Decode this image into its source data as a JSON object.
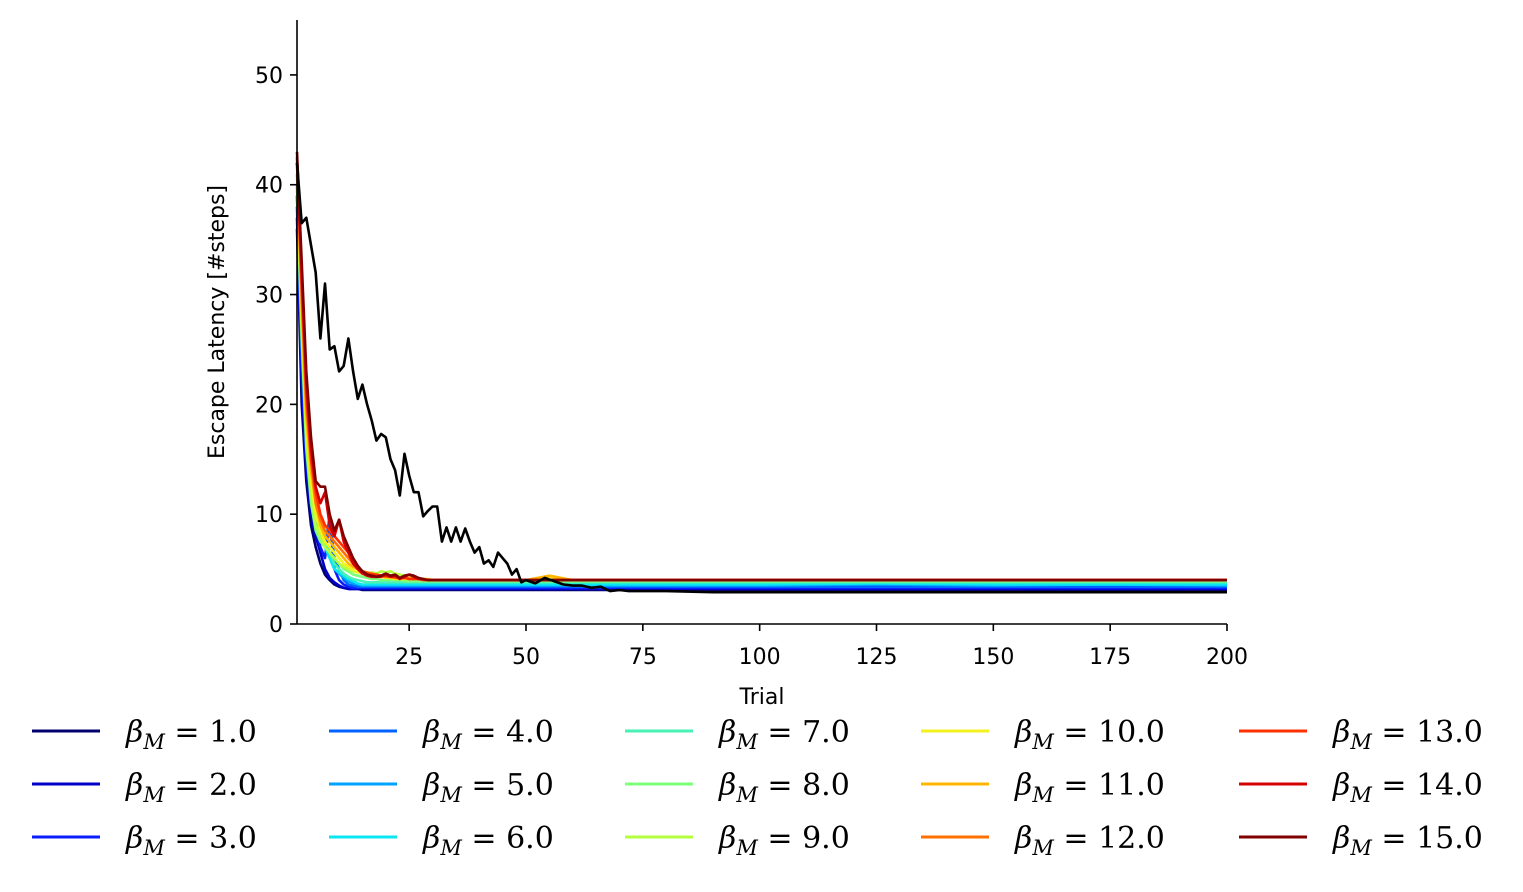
{
  "chart_data": {
    "type": "line",
    "xlabel": "Trial",
    "ylabel": "Escape Latency [#steps]",
    "xlim": [
      1,
      200
    ],
    "ylim": [
      0,
      55
    ],
    "xticks": [
      25,
      50,
      75,
      100,
      125,
      150,
      175,
      200
    ],
    "yticks": [
      0,
      10,
      20,
      30,
      40,
      50
    ],
    "grid": false,
    "legend_position": "bottom",
    "legend_columns": 5,
    "legend_symbol": "β",
    "legend_subscript": "M",
    "legend_operator": " = ",
    "x": [
      1,
      2,
      3,
      4,
      5,
      6,
      7,
      8,
      9,
      10,
      11,
      12,
      13,
      14,
      15,
      16,
      17,
      18,
      19,
      20,
      21,
      22,
      23,
      24,
      25,
      26,
      27,
      28,
      29,
      30,
      35,
      40,
      45,
      50,
      55,
      60,
      65,
      70,
      75,
      80,
      90,
      100,
      125,
      150,
      175,
      200
    ],
    "series": [
      {
        "name": "1.0",
        "color": "#00006e",
        "values": [
          36,
          20,
          13,
          9,
          7,
          5.5,
          4.5,
          4,
          3.6,
          3.4,
          3.3,
          3.2,
          3.2,
          3.2,
          3.1,
          3.1,
          3.1,
          3.1,
          3.1,
          3.1,
          3.1,
          3.1,
          3.1,
          3.1,
          3.1,
          3.1,
          3.1,
          3.1,
          3.1,
          3.1,
          3.1,
          3.1,
          3.1,
          3.1,
          3.1,
          3.1,
          3.1,
          3.1,
          3.1,
          3.1,
          3.1,
          3.1,
          3.1,
          3.1,
          3.1,
          3.1
        ]
      },
      {
        "name": "2.0",
        "color": "#0000c8",
        "values": [
          37,
          22,
          14,
          10,
          8,
          6.5,
          5,
          4.2,
          3.8,
          3.5,
          3.3,
          3.2,
          3.2,
          3.2,
          3.2,
          3.2,
          3.2,
          3.2,
          3.2,
          3.2,
          3.2,
          3.2,
          3.2,
          3.2,
          3.2,
          3.2,
          3.2,
          3.2,
          3.2,
          3.2,
          3.2,
          3.2,
          3.2,
          3.2,
          3.2,
          3.2,
          3.2,
          3.2,
          3.2,
          3.2,
          3.2,
          3.2,
          3.2,
          3.2,
          3.2,
          3.2
        ]
      },
      {
        "name": "3.0",
        "color": "#0a1eff",
        "values": [
          38,
          23,
          15,
          11,
          9,
          7,
          6,
          9.5,
          5,
          4,
          3.6,
          3.4,
          3.3,
          3.3,
          3.3,
          3.3,
          3.3,
          3.3,
          3.3,
          3.3,
          3.3,
          3.3,
          3.3,
          3.3,
          3.3,
          3.3,
          3.3,
          3.3,
          3.3,
          3.3,
          3.3,
          3.3,
          3.3,
          3.3,
          3.3,
          3.3,
          3.3,
          3.3,
          3.3,
          3.3,
          3.3,
          3.3,
          3.3,
          3.3,
          3.3,
          3.3
        ]
      },
      {
        "name": "4.0",
        "color": "#0062ff",
        "values": [
          39,
          25,
          16,
          12,
          9,
          8,
          7,
          9.8,
          6,
          5,
          4,
          3.6,
          3.5,
          3.4,
          3.4,
          3.4,
          3.4,
          3.4,
          3.4,
          3.4,
          3.4,
          3.4,
          3.4,
          3.4,
          3.4,
          3.4,
          3.4,
          3.4,
          3.4,
          3.4,
          3.4,
          3.4,
          3.4,
          3.4,
          3.4,
          3.4,
          3.4,
          3.4,
          3.4,
          3.4,
          3.4,
          3.4,
          3.4,
          3.4,
          3.4,
          3.4
        ]
      },
      {
        "name": "5.0",
        "color": "#00a2ff",
        "values": [
          39,
          26,
          17,
          12,
          10,
          8,
          7,
          6,
          5,
          4.6,
          4.2,
          3.9,
          3.7,
          3.6,
          3.5,
          3.5,
          3.5,
          3.5,
          3.5,
          3.5,
          3.5,
          3.5,
          3.5,
          3.5,
          3.5,
          3.5,
          3.5,
          3.5,
          3.5,
          3.5,
          3.5,
          3.5,
          3.5,
          3.5,
          3.5,
          3.5,
          3.5,
          3.5,
          3.5,
          3.5,
          3.5,
          3.5,
          3.6,
          3.5,
          3.6,
          3.5
        ]
      },
      {
        "name": "6.0",
        "color": "#0ae6f2",
        "values": [
          40,
          27,
          17,
          13,
          10,
          8.5,
          7,
          6,
          5,
          4.7,
          4.4,
          4.1,
          3.9,
          3.7,
          3.6,
          3.6,
          3.6,
          3.6,
          3.6,
          3.6,
          3.6,
          3.6,
          3.6,
          3.6,
          3.6,
          3.6,
          3.6,
          3.6,
          3.6,
          3.6,
          3.6,
          3.6,
          3.6,
          3.6,
          3.6,
          3.6,
          3.6,
          3.6,
          3.6,
          3.6,
          3.6,
          3.6,
          3.7,
          3.6,
          3.6,
          3.6
        ]
      },
      {
        "name": "7.0",
        "color": "#48f2b4",
        "values": [
          40,
          27,
          18,
          13,
          10,
          8.5,
          7.5,
          6.5,
          5.5,
          5,
          4.6,
          4.3,
          4.1,
          4,
          3.9,
          3.8,
          3.8,
          3.8,
          3.8,
          3.8,
          3.8,
          3.8,
          3.8,
          3.8,
          3.8,
          3.8,
          3.8,
          3.8,
          3.8,
          3.8,
          3.8,
          3.8,
          3.8,
          3.8,
          3.8,
          3.8,
          3.8,
          3.8,
          3.8,
          3.8,
          3.8,
          3.8,
          3.8,
          3.8,
          3.8,
          3.8
        ]
      },
      {
        "name": "8.0",
        "color": "#7cff7a",
        "values": [
          40,
          26,
          16,
          11,
          8.5,
          7.5,
          7,
          6.5,
          6,
          5.5,
          5,
          4.8,
          4.5,
          4.4,
          4.3,
          4.2,
          4.1,
          4.1,
          4,
          4,
          4,
          4,
          4,
          3.9,
          3.9,
          3.9,
          3.9,
          3.9,
          3.9,
          3.9,
          3.9,
          3.9,
          3.9,
          3.9,
          3.9,
          3.9,
          3.9,
          3.9,
          3.9,
          3.9,
          3.9,
          3.9,
          3.9,
          3.9,
          3.9,
          3.9
        ]
      },
      {
        "name": "9.0",
        "color": "#b4ff3e",
        "values": [
          40,
          27,
          17,
          12,
          9,
          8,
          7,
          6.5,
          6,
          5.5,
          5.2,
          5,
          4.8,
          4.7,
          4.6,
          4.6,
          4.7,
          4.6,
          4.8,
          4.7,
          4.8,
          4.6,
          4.5,
          4.4,
          4.2,
          4.1,
          4.1,
          4,
          4,
          4,
          4,
          4,
          4,
          4,
          4,
          4,
          4,
          4,
          4,
          4,
          4,
          4,
          4,
          4,
          4,
          4
        ]
      },
      {
        "name": "10.0",
        "color": "#f2f21e",
        "values": [
          41,
          28,
          18,
          13,
          10,
          8.5,
          7.5,
          7,
          6.5,
          6,
          5.5,
          5.2,
          4.9,
          4.7,
          4.6,
          4.5,
          4.4,
          4.3,
          4.3,
          4.2,
          4.2,
          4.1,
          4.1,
          4.1,
          4.1,
          4.1,
          4.1,
          4.1,
          4,
          4,
          4,
          4,
          4,
          4,
          4.3,
          4,
          4,
          4,
          4,
          4,
          4,
          4,
          4,
          4,
          4,
          4
        ]
      },
      {
        "name": "11.0",
        "color": "#ffb400",
        "values": [
          41,
          29,
          19,
          14,
          11,
          9,
          8,
          7.5,
          7,
          6.5,
          6,
          5.5,
          5.2,
          5,
          4.8,
          4.6,
          4.5,
          4.4,
          4.4,
          4.3,
          4.3,
          4.2,
          4.2,
          4.2,
          4.2,
          4.1,
          4.1,
          4.1,
          4.1,
          4,
          4,
          4,
          4,
          4,
          4.4,
          4,
          4,
          4,
          4,
          4,
          4,
          4,
          4,
          4,
          4,
          4
        ]
      },
      {
        "name": "12.0",
        "color": "#ff7000",
        "values": [
          42,
          30,
          20,
          15,
          11,
          9.5,
          8.5,
          8,
          7.5,
          7,
          6.5,
          6,
          5.5,
          5.1,
          4.8,
          4.7,
          4.6,
          4.5,
          4.4,
          4.3,
          4.3,
          4.2,
          4.2,
          4.2,
          4.1,
          4.1,
          4.1,
          4.1,
          4,
          4,
          4,
          4,
          4,
          4,
          4,
          4,
          4,
          4,
          4,
          4,
          4,
          4,
          4,
          4,
          4,
          4
        ]
      },
      {
        "name": "13.0",
        "color": "#ff3000",
        "values": [
          42,
          31,
          21,
          15,
          12,
          10,
          9,
          8.5,
          8,
          7.5,
          7,
          6.5,
          5.8,
          5.2,
          4.8,
          4.6,
          4.5,
          4.5,
          4.4,
          4.4,
          4.3,
          4.3,
          4.2,
          4.2,
          4.1,
          4.1,
          4.1,
          4,
          4,
          4,
          4,
          4,
          4,
          4,
          4,
          4,
          4,
          4,
          4,
          4,
          4,
          4,
          4,
          4,
          4,
          4
        ]
      },
      {
        "name": "14.0",
        "color": "#d40000",
        "values": [
          42.5,
          32,
          22,
          16,
          12.5,
          11,
          12,
          9,
          8,
          9.5,
          7.5,
          6.5,
          5.5,
          5,
          4.6,
          4.4,
          4.3,
          4.3,
          4.3,
          4.5,
          4.3,
          4.4,
          4.1,
          4.3,
          4.5,
          4.3,
          4.1,
          4.1,
          4,
          4,
          4,
          4,
          4,
          4,
          4,
          4,
          4,
          4,
          4,
          4,
          4,
          4,
          4,
          4,
          4,
          4
        ]
      },
      {
        "name": "15.0",
        "color": "#800000",
        "values": [
          43,
          33,
          23,
          17,
          13,
          12.5,
          12.5,
          10,
          8.5,
          9.5,
          8,
          7,
          6,
          5.3,
          4.8,
          4.5,
          4.4,
          4.3,
          4.4,
          4.6,
          4.4,
          4.5,
          4.2,
          4.4,
          4.5,
          4.4,
          4.2,
          4.1,
          4,
          4,
          4,
          4,
          4,
          4,
          4,
          4,
          4,
          4,
          4,
          4,
          4,
          4,
          4,
          4,
          4,
          4
        ]
      }
    ],
    "baseline": {
      "color": "#000000",
      "x": [
        1,
        2,
        3,
        4,
        5,
        6,
        7,
        8,
        9,
        10,
        11,
        12,
        13,
        14,
        15,
        16,
        17,
        18,
        19,
        20,
        21,
        22,
        23,
        24,
        25,
        26,
        27,
        28,
        29,
        30,
        31,
        32,
        33,
        34,
        35,
        36,
        37,
        38,
        39,
        40,
        41,
        42,
        43,
        44,
        45,
        46,
        47,
        48,
        49,
        50,
        52,
        54,
        56,
        58,
        60,
        62,
        64,
        66,
        68,
        70,
        72,
        75,
        80,
        90,
        100,
        125,
        150,
        175,
        200
      ],
      "values": [
        42,
        36.5,
        37,
        34.5,
        32,
        26,
        31,
        25,
        25.3,
        23,
        23.5,
        26,
        23,
        20.5,
        21.8,
        20,
        18.5,
        16.7,
        17.3,
        17,
        15,
        14,
        11.7,
        15.5,
        13.5,
        12,
        12,
        9.8,
        10.3,
        10.7,
        10.7,
        7.5,
        8.8,
        7.5,
        8.8,
        7.5,
        8.7,
        7.5,
        6.5,
        7,
        5.5,
        5.8,
        5.2,
        6.5,
        6,
        5.5,
        4.5,
        5,
        3.8,
        4,
        3.7,
        4.2,
        3.9,
        3.6,
        3.5,
        3.5,
        3.3,
        3.4,
        3,
        3.1,
        3,
        3,
        3,
        2.9,
        2.9,
        2.9,
        2.9,
        2.9,
        2.9
      ]
    }
  }
}
